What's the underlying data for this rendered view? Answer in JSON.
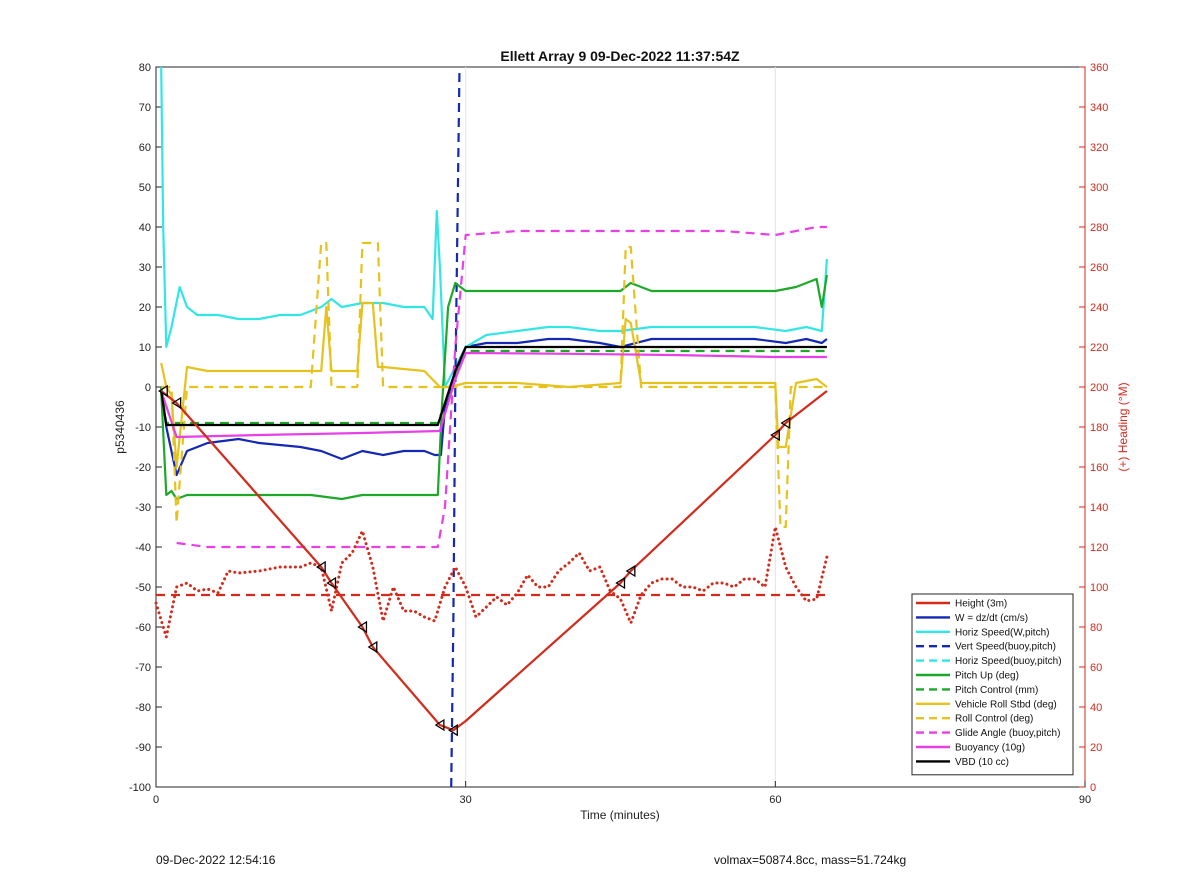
{
  "footer": {
    "left": "09-Dec-2022 12:54:16",
    "right": "volmax=50874.8cc, mass=51.724kg"
  },
  "chart_data": {
    "type": "line",
    "title": "Ellett Array 9 09-Dec-2022 11:37:54Z",
    "xlabel": "Time (minutes)",
    "ylabel": "p5340436",
    "y2label": "(+) Heading (°M)",
    "xlim": [
      0,
      90
    ],
    "ylim": [
      -100,
      80
    ],
    "y2lim": [
      0,
      360
    ],
    "xticks": [
      0,
      30,
      60,
      90
    ],
    "yticks": [
      80,
      70,
      60,
      50,
      40,
      30,
      20,
      10,
      0,
      -10,
      -20,
      -30,
      -40,
      -50,
      -60,
      -70,
      -80,
      -90,
      -100
    ],
    "y2ticks": [
      360,
      340,
      320,
      300,
      280,
      260,
      240,
      220,
      200,
      180,
      160,
      140,
      120,
      100,
      80,
      60,
      40,
      20,
      0
    ],
    "grid": "x-only",
    "legend_position": "bottom-right",
    "colors": {
      "red": "#d42a1c",
      "blue": "#1428b4",
      "cyan": "#33e6e6",
      "green": "#1ea82a",
      "yellow": "#e6c21e",
      "magenta": "#e640e6",
      "black": "#000000",
      "axis2": "#d42a1c"
    },
    "series": [
      {
        "name": "Height (3m)",
        "color": "red",
        "style": "solid",
        "x": [
          0.5,
          2,
          16,
          17,
          20,
          21,
          27.5,
          28.8,
          30,
          45,
          46,
          60,
          61,
          65
        ],
        "y": [
          -1,
          -4,
          -45,
          -49,
          -60,
          -65,
          -84.5,
          -85.8,
          -83.5,
          -49,
          -46,
          -12,
          -9,
          -1
        ]
      },
      {
        "name": "W = dz/dt (cm/s)",
        "color": "blue",
        "style": "solid",
        "x": [
          0.5,
          1,
          2,
          3,
          5,
          8,
          10,
          14,
          16,
          18,
          20,
          22,
          24,
          26,
          27,
          27.6,
          28,
          29,
          30,
          32,
          35,
          38,
          40,
          43,
          45,
          48,
          52,
          55,
          58,
          61,
          63,
          64.5,
          65
        ],
        "y": [
          0,
          -10,
          -22,
          -16,
          -14,
          -13,
          -14,
          -15,
          -16,
          -18,
          -16,
          -17,
          -16,
          -16,
          -17,
          -17,
          -5,
          2,
          10,
          11,
          11,
          12,
          12,
          11,
          10,
          12,
          12,
          12,
          12,
          11,
          12,
          11,
          12
        ]
      },
      {
        "name": "Horiz Speed(W,pitch)",
        "color": "cyan",
        "style": "solid",
        "x": [
          0.5,
          0.7,
          1,
          1.5,
          2.3,
          3,
          4,
          6,
          8,
          10,
          12,
          14,
          16,
          17,
          18,
          20,
          22,
          24,
          26,
          26.8,
          27.2,
          27.5,
          28,
          29,
          30,
          32,
          35,
          38,
          40,
          43,
          45,
          48,
          52,
          55,
          58,
          61,
          63,
          64.5,
          65
        ],
        "y": [
          80,
          40,
          10,
          15,
          25,
          20,
          18,
          18,
          17,
          17,
          18,
          18,
          20,
          22,
          20,
          21,
          21,
          20,
          20,
          17,
          44,
          30,
          0,
          5,
          10,
          13,
          14,
          15,
          15,
          14,
          14,
          15,
          15,
          15,
          15,
          14,
          15,
          14,
          32
        ]
      },
      {
        "name": "Vert Speed(buoy,pitch)",
        "color": "blue",
        "style": "dashed",
        "x": [
          28.6,
          28.8,
          29,
          29.2,
          29.4
        ],
        "y": [
          -100,
          -60,
          0,
          40,
          80
        ]
      },
      {
        "name": "Horiz Speed(buoy,pitch)",
        "color": "cyan",
        "style": "dashed",
        "x": [],
        "y": []
      },
      {
        "name": "Pitch Up (deg)",
        "color": "green",
        "style": "solid",
        "x": [
          0.5,
          1,
          1.5,
          2,
          3,
          5,
          10,
          15,
          18,
          20,
          24,
          26,
          27.3,
          27.7,
          28.3,
          29,
          30,
          35,
          40,
          45,
          46,
          48,
          55,
          60,
          62,
          64,
          64.5,
          65
        ],
        "y": [
          -1,
          -27,
          -26,
          -28,
          -27,
          -27,
          -27,
          -27,
          -28,
          -27,
          -27,
          -27,
          -27,
          -5,
          20,
          26,
          24,
          24,
          24,
          24,
          26,
          24,
          24,
          24,
          25,
          27,
          20,
          28
        ]
      },
      {
        "name": "Pitch Control (mm)",
        "color": "green",
        "style": "dashed",
        "x": [
          0.5,
          1,
          27.3,
          29,
          30,
          65
        ],
        "y": [
          0,
          -9,
          -9,
          3,
          9,
          9
        ]
      },
      {
        "name": "Vehicle Roll Stbd (deg)",
        "color": "yellow",
        "style": "solid",
        "x": [
          0.5,
          1,
          1.5,
          2,
          3,
          5,
          10,
          15,
          16,
          16.5,
          17,
          19.5,
          20,
          21,
          21.5,
          22,
          26,
          27.5,
          28.5,
          30,
          35,
          40,
          45,
          45.5,
          46,
          47,
          48,
          55,
          60,
          60.3,
          61,
          62,
          64,
          65
        ],
        "y": [
          6,
          0,
          -2,
          -20,
          5,
          4,
          4,
          4,
          4,
          20,
          4,
          4,
          21,
          21,
          5,
          5,
          4,
          0,
          0,
          1,
          1,
          0,
          1,
          17,
          16,
          1,
          1,
          1,
          1,
          -15,
          -15,
          1,
          2,
          0
        ]
      },
      {
        "name": "Roll Control (deg)",
        "color": "yellow",
        "style": "dashed",
        "x": [
          0.5,
          1.5,
          2,
          3,
          15,
          16,
          16.5,
          17,
          19.5,
          20,
          21.5,
          22,
          45,
          45.5,
          46,
          47,
          60,
          60.5,
          61,
          61.5,
          65
        ],
        "y": [
          0,
          0,
          -34,
          0,
          0,
          36,
          36,
          0,
          0,
          36,
          36,
          0,
          0,
          35,
          35,
          0,
          0,
          -35,
          -35,
          0,
          0
        ]
      },
      {
        "name": "Glide Angle (buoy,pitch)",
        "color": "magenta",
        "style": "dashed",
        "x": [
          2,
          5,
          10,
          15,
          20,
          25,
          27.3,
          28,
          29,
          30,
          35,
          40,
          45,
          50,
          55,
          60,
          64,
          65
        ],
        "y": [
          -39,
          -40,
          -40,
          -40,
          -40,
          -40,
          -40,
          -30,
          10,
          38,
          39,
          39,
          39,
          39,
          39,
          38,
          40,
          40
        ]
      },
      {
        "name": "Buoyancy (10g)",
        "color": "magenta",
        "style": "solid",
        "x": [
          0.5,
          2,
          10,
          20,
          27.5,
          29,
          30,
          40,
          50,
          60,
          65
        ],
        "y": [
          -1,
          -12.5,
          -12,
          -11.5,
          -11,
          2,
          8.5,
          8.3,
          8,
          7.5,
          7.5
        ]
      },
      {
        "name": "VBD (10 cc)",
        "color": "black",
        "style": "solid",
        "x": [
          0.5,
          1,
          27.3,
          29,
          30,
          65
        ],
        "y": [
          -1,
          -9.5,
          -9.5,
          4,
          10,
          10
        ]
      }
    ],
    "heading_series": [
      {
        "name": "heading",
        "color": "red",
        "style": "dotted",
        "axis": "right",
        "x": [
          0,
          1,
          2,
          3,
          4,
          5,
          6,
          7,
          8,
          10,
          12,
          14,
          15,
          16,
          17,
          18,
          19,
          20,
          21,
          22,
          23,
          24,
          25,
          26,
          27,
          28,
          29,
          30,
          31,
          32,
          33,
          34,
          35,
          36,
          37,
          38,
          39,
          40,
          41,
          42,
          43,
          44,
          45,
          46,
          47,
          48,
          49,
          50,
          51,
          52,
          53,
          54,
          55,
          56,
          57,
          58,
          59,
          60,
          61,
          62,
          63,
          64,
          65
        ],
        "y": [
          92,
          75,
          100,
          102,
          98,
          99,
          97,
          108,
          107,
          108,
          110,
          110,
          112,
          110,
          88,
          112,
          117,
          128,
          110,
          83,
          100,
          88,
          88,
          85,
          83,
          100,
          110,
          100,
          85,
          90,
          95,
          91,
          97,
          106,
          100,
          100,
          108,
          112,
          117,
          108,
          110,
          98,
          94,
          82,
          96,
          102,
          104,
          104,
          100,
          100,
          98,
          102,
          102,
          100,
          104,
          104,
          100,
          130,
          110,
          100,
          93,
          94,
          115
        ]
      },
      {
        "name": "heading-mean",
        "color": "red",
        "style": "dashed",
        "axis": "right",
        "x": [
          0,
          65
        ],
        "y": [
          96,
          96
        ]
      }
    ],
    "markers": [
      {
        "x": 0.7,
        "y": -1
      },
      {
        "x": 2,
        "y": -4
      },
      {
        "x": 16,
        "y": -45
      },
      {
        "x": 17,
        "y": -49
      },
      {
        "x": 20,
        "y": -60
      },
      {
        "x": 21,
        "y": -65
      },
      {
        "x": 27.5,
        "y": -84.5
      },
      {
        "x": 28.8,
        "y": -85.8
      },
      {
        "x": 45,
        "y": -49
      },
      {
        "x": 46,
        "y": -46
      },
      {
        "x": 60,
        "y": -12
      },
      {
        "x": 61,
        "y": -9
      }
    ]
  }
}
